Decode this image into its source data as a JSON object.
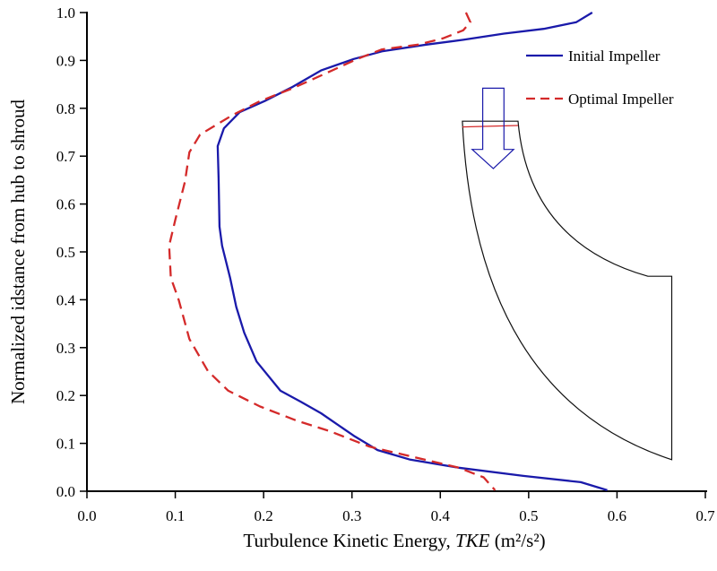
{
  "chart_data": {
    "type": "line",
    "title": "",
    "xlabel_prefix": "Turbulence Kinetic Energy, ",
    "xlabel_italic": "TKE",
    "xlabel_unit": " (m²/s²)",
    "ylabel": "Normalized idstance from hub to shroud",
    "xlim": [
      0,
      0.7
    ],
    "ylim": [
      0,
      1.0
    ],
    "xticks": [
      "0.0",
      "0.1",
      "0.2",
      "0.3",
      "0.4",
      "0.5",
      "0.6",
      "0.7"
    ],
    "yticks": [
      "0.0",
      "0.1",
      "0.2",
      "0.3",
      "0.4",
      "0.5",
      "0.6",
      "0.7",
      "0.8",
      "0.9",
      "1.0"
    ],
    "grid": false,
    "legend_position": "top-right",
    "series": [
      {
        "name": "Initial Impeller",
        "color": "#1a1aaa",
        "style": "solid",
        "points": [
          [
            0.572,
            1.0
          ],
          [
            0.554,
            0.98
          ],
          [
            0.517,
            0.966
          ],
          [
            0.472,
            0.956
          ],
          [
            0.426,
            0.943
          ],
          [
            0.384,
            0.933
          ],
          [
            0.334,
            0.919
          ],
          [
            0.302,
            0.903
          ],
          [
            0.265,
            0.879
          ],
          [
            0.233,
            0.845
          ],
          [
            0.201,
            0.815
          ],
          [
            0.173,
            0.792
          ],
          [
            0.155,
            0.758
          ],
          [
            0.148,
            0.721
          ],
          [
            0.149,
            0.654
          ],
          [
            0.15,
            0.553
          ],
          [
            0.153,
            0.513
          ],
          [
            0.162,
            0.446
          ],
          [
            0.169,
            0.385
          ],
          [
            0.178,
            0.331
          ],
          [
            0.192,
            0.271
          ],
          [
            0.219,
            0.21
          ],
          [
            0.242,
            0.187
          ],
          [
            0.265,
            0.163
          ],
          [
            0.302,
            0.116
          ],
          [
            0.329,
            0.086
          ],
          [
            0.366,
            0.066
          ],
          [
            0.421,
            0.049
          ],
          [
            0.494,
            0.032
          ],
          [
            0.559,
            0.019
          ],
          [
            0.589,
            0.002
          ]
        ]
      },
      {
        "name": "Optimal Impeller",
        "color": "#d42a2a",
        "style": "dashed",
        "points": [
          [
            0.429,
            1.0
          ],
          [
            0.434,
            0.98
          ],
          [
            0.426,
            0.963
          ],
          [
            0.403,
            0.946
          ],
          [
            0.375,
            0.933
          ],
          [
            0.334,
            0.923
          ],
          [
            0.306,
            0.903
          ],
          [
            0.274,
            0.876
          ],
          [
            0.233,
            0.842
          ],
          [
            0.196,
            0.815
          ],
          [
            0.164,
            0.785
          ],
          [
            0.128,
            0.745
          ],
          [
            0.116,
            0.708
          ],
          [
            0.111,
            0.647
          ],
          [
            0.1,
            0.567
          ],
          [
            0.093,
            0.513
          ],
          [
            0.095,
            0.446
          ],
          [
            0.104,
            0.399
          ],
          [
            0.116,
            0.318
          ],
          [
            0.137,
            0.251
          ],
          [
            0.16,
            0.21
          ],
          [
            0.196,
            0.177
          ],
          [
            0.238,
            0.147
          ],
          [
            0.274,
            0.126
          ],
          [
            0.32,
            0.093
          ],
          [
            0.366,
            0.073
          ],
          [
            0.421,
            0.049
          ],
          [
            0.449,
            0.029
          ],
          [
            0.462,
            0.002
          ]
        ]
      }
    ]
  }
}
